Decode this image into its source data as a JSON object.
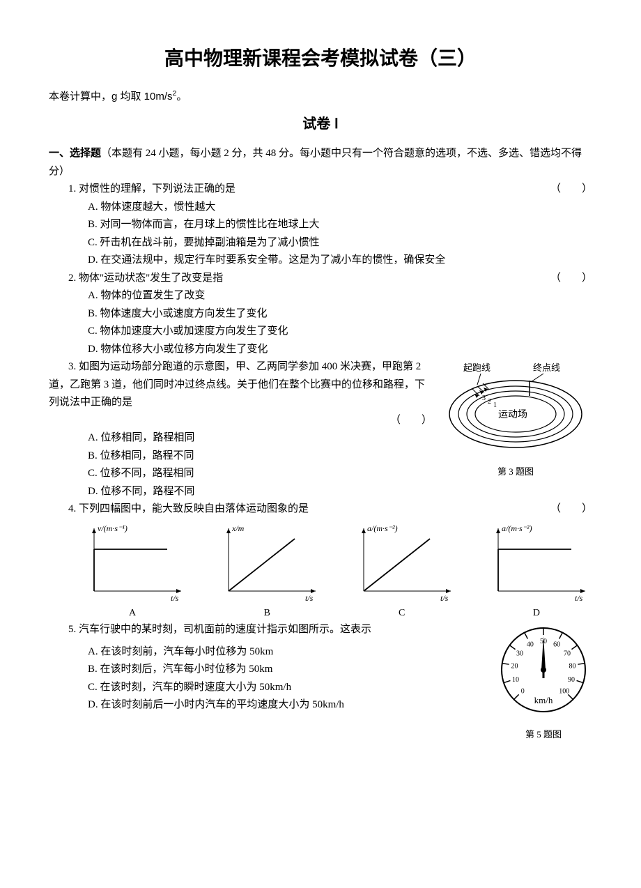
{
  "title": "高中物理新课程会考模拟试卷（三）",
  "note_prefix": "本卷计算中，g 均取 10m/s",
  "note_exp": "2",
  "note_suffix": "。",
  "paper_label": "试卷 Ⅰ",
  "section_head_bold": "一、选择题",
  "section_head_rest": "（本题有 24 小题，每小题 2 分，共 48 分。每小题中只有一个符合题意的选项，不选、多选、错选均不得分）",
  "paren": "（　　）",
  "q1": {
    "stem": "1. 对惯性的理解，下列说法正确的是",
    "A": "A. 物体速度越大，惯性越大",
    "B": "B. 对同一物体而言，在月球上的惯性比在地球上大",
    "C": "C. 歼击机在战斗前，要抛掉副油箱是为了减小惯性",
    "D": "D. 在交通法规中，规定行车时要系安全带。这是为了减小车的惯性，确保安全"
  },
  "q2": {
    "stem": "2. 物体\"运动状态\"发生了改变是指",
    "A": "A. 物体的位置发生了改变",
    "B": "B. 物体速度大小或速度方向发生了变化",
    "C": "C. 物体加速度大小或加速度方向发生了变化",
    "D": "D. 物体位移大小或位移方向发生了变化"
  },
  "q3": {
    "stem": "3. 如图为运动场部分跑道的示意图，甲、乙两同学参加 400 米决赛，甲跑第 2 道，乙跑第 3 道，他们同时冲过终点线。关于他们在整个比赛中的位移和路程，下列说法中正确的是",
    "A": "A. 位移相同，路程相同",
    "B": "B. 位移相同，路程不同",
    "C": "C. 位移不同，路程相同",
    "D": "D. 位移不同，路程不同",
    "fig_labels": {
      "start": "起跑线",
      "finish": "终点线",
      "field": "运动场",
      "lane1": "1",
      "lane2": "2",
      "lane3": "3",
      "caption": "第 3 题图"
    }
  },
  "q4": {
    "stem": "4. 下列四幅图中，能大致反映自由落体运动图象的是",
    "charts": {
      "xaxis": "t/s",
      "A": {
        "label": "A",
        "yaxis": "v/(m·s⁻¹)"
      },
      "B": {
        "label": "B",
        "yaxis": "x/m"
      },
      "C": {
        "label": "C",
        "yaxis": "a/(m·s⁻²)"
      },
      "D": {
        "label": "D",
        "yaxis": "a/(m·s⁻²)"
      }
    }
  },
  "q5": {
    "stem": "5. 汽车行驶中的某时刻，司机面前的速度计指示如图所示。这表示",
    "A": "A. 在该时刻前，汽车每小时位移为 50km",
    "B": "B. 在该时刻后，汽车每小时位移为 50km",
    "C": "C. 在该时刻，汽车的瞬时速度大小为 50km/h",
    "D": "D. 在该时刻前后一小时内汽车的平均速度大小为 50km/h",
    "fig": {
      "unit": "km/h",
      "ticks": [
        "0",
        "10",
        "20",
        "30",
        "40",
        "50",
        "60",
        "70",
        "80",
        "90",
        "100"
      ],
      "caption": "第 5 题图"
    }
  }
}
